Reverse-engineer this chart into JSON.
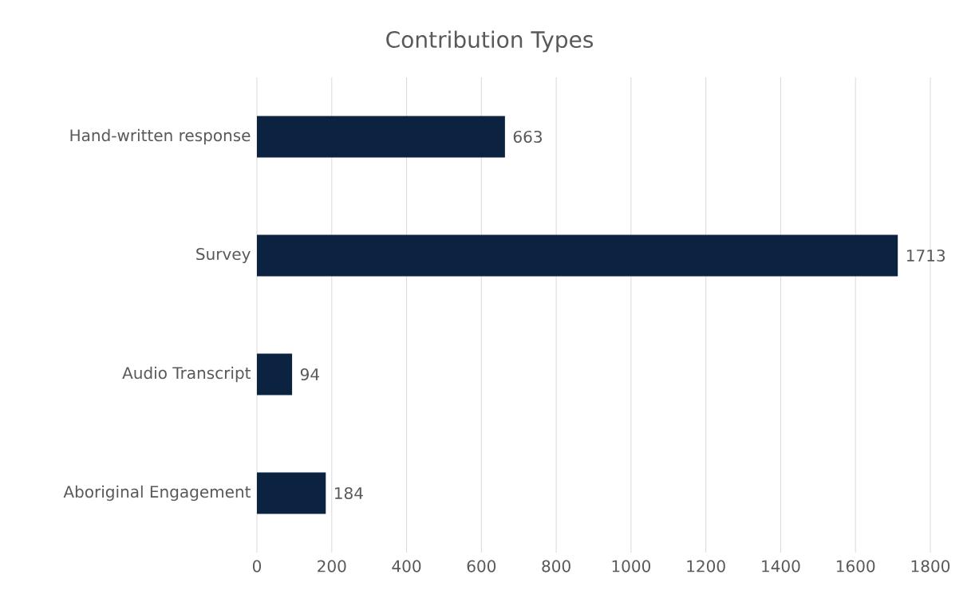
{
  "chart_data": {
    "type": "bar",
    "orientation": "horizontal",
    "title": "Contribution Types",
    "categories": [
      "Hand-written response",
      "Survey",
      "Audio Transcript",
      "Aboriginal Engagement"
    ],
    "values": [
      663,
      1713,
      94,
      184
    ],
    "color": "#0b2341",
    "xlim": [
      0,
      1800
    ],
    "xticks": [
      0,
      200,
      400,
      600,
      800,
      1000,
      1200,
      1400,
      1600,
      1800
    ],
    "grid": "x",
    "data_labels": true
  }
}
